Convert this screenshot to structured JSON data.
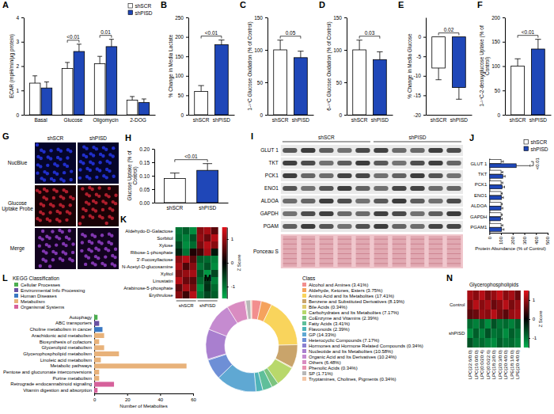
{
  "chart_data": [
    {
      "panel": "A",
      "type": "bar",
      "y_label": "ECAR (mpH/min/µg protein)",
      "categories": [
        "Basal",
        "Glucose",
        "Oligomycin",
        "2-DOG"
      ],
      "series": [
        {
          "name": "shSCR",
          "color": "#ffffff",
          "values": [
            1.3,
            1.9,
            2.1,
            0.6
          ],
          "errors": [
            0.3,
            0.25,
            0.3,
            0.15
          ]
        },
        {
          "name": "shPISD",
          "color": "#1f47b8",
          "values": [
            1.1,
            2.6,
            2.8,
            0.5
          ],
          "errors": [
            0.25,
            0.3,
            0.3,
            0.15
          ]
        }
      ],
      "ylim": [
        0,
        4
      ],
      "yticks": [
        0,
        1,
        2,
        3,
        4
      ],
      "legend": "top-right",
      "annotations": [
        {
          "text": "<0.01",
          "category": "Glucose"
        },
        {
          "text": "0.01",
          "category": "Oligomycin"
        }
      ]
    },
    {
      "panel": "B",
      "type": "bar",
      "y_label": "% Change in Media Lactate",
      "categories": [
        "shSCR",
        "shPISD"
      ],
      "values": [
        60,
        180
      ],
      "errors": [
        15,
        12
      ],
      "colors": [
        "#ffffff",
        "#1f47b8"
      ],
      "ylim": [
        0,
        250
      ],
      "yticks": [
        0,
        50,
        100,
        150,
        200,
        250
      ],
      "annotations": [
        {
          "text": "<0.01"
        }
      ]
    },
    {
      "panel": "C",
      "type": "bar",
      "y_label": "1-¹⁴C Glucose Oxidation (% of Control)",
      "categories": [
        "shSCR",
        "shPISD"
      ],
      "values": [
        100,
        88
      ],
      "errors": [
        15,
        10
      ],
      "colors": [
        "#ffffff",
        "#1f47b8"
      ],
      "ylim": [
        0,
        150
      ],
      "yticks": [
        0,
        50,
        100,
        150
      ],
      "annotations": [
        {
          "text": "0.05"
        }
      ]
    },
    {
      "panel": "D",
      "type": "bar",
      "y_label": "6-¹⁴C Glucose Oxidation (% of Control)",
      "categories": [
        "shSCR",
        "shPISD"
      ],
      "values": [
        100,
        85
      ],
      "errors": [
        15,
        12
      ],
      "colors": [
        "#ffffff",
        "#1f47b8"
      ],
      "ylim": [
        0,
        150
      ],
      "yticks": [
        0,
        50,
        100,
        150
      ],
      "annotations": [
        {
          "text": "0.03"
        }
      ]
    },
    {
      "panel": "E",
      "type": "bar",
      "y_label": "% Change in Media Glucose",
      "categories": [
        "shSCR",
        "shPISD"
      ],
      "values": [
        -8,
        -13
      ],
      "errors": [
        3,
        3
      ],
      "colors": [
        "#ffffff",
        "#1f47b8"
      ],
      "ylim": [
        -20,
        5
      ],
      "yticks": [
        -20,
        -15,
        -10,
        -5,
        0
      ],
      "annotations": [
        {
          "text": "0.02"
        }
      ]
    },
    {
      "panel": "F",
      "type": "bar",
      "y_label": "1-¹⁴C-2-deoxyglucose Uptake (% of Control)",
      "categories": [
        "shSCR",
        "shPISD"
      ],
      "values": [
        100,
        135
      ],
      "errors": [
        15,
        20
      ],
      "colors": [
        "#ffffff",
        "#1f47b8"
      ],
      "ylim": [
        0,
        200
      ],
      "yticks": [
        0,
        50,
        100,
        150,
        200
      ],
      "annotations": [
        {
          "text": "<0.01"
        }
      ]
    },
    {
      "panel": "G",
      "type": "image",
      "columns": [
        "shSCR",
        "shPISD"
      ],
      "rows": [
        "NucBlue",
        "Glucose Uptake Probe",
        "Merge"
      ]
    },
    {
      "panel": "H",
      "type": "bar",
      "y_label": "Glucose Uptake (% of Control)",
      "categories": [
        "shSCR",
        "shPISD"
      ],
      "values": [
        0.09,
        0.12
      ],
      "errors": [
        0.02,
        0.025
      ],
      "colors": [
        "#ffffff",
        "#1f47b8"
      ],
      "ylim": [
        0,
        0.2
      ],
      "yticks": [
        {
          "value": 0,
          "label": "0.00"
        },
        {
          "value": 0.05,
          "label": "0.05"
        },
        {
          "value": 0.1,
          "label": "0.10"
        },
        {
          "value": 0.15,
          "label": "0.15"
        },
        {
          "value": 0.2,
          "label": "0.20"
        }
      ],
      "annotations": [
        {
          "text": "<0.01"
        }
      ]
    },
    {
      "panel": "I",
      "type": "blot",
      "groups": [
        "shSCR",
        "shPISD"
      ],
      "rows": [
        "GLUT 1",
        "TKT",
        "PCK1",
        "ENO1",
        "ALDOA",
        "GAPDH",
        "PGAM"
      ],
      "loading_control": "Ponceau S"
    },
    {
      "panel": "J",
      "type": "bar",
      "orientation": "horizontal",
      "x_label": "Protein Abundance (% of Control)",
      "categories": [
        "GLUT 1",
        "TKT",
        "PCK1",
        "ENO1",
        "ALDOA",
        "GAPDH",
        "PGAM1"
      ],
      "series": [
        {
          "name": "shSCR",
          "color": "#ffffff",
          "values": [
            100,
            100,
            100,
            100,
            100,
            100,
            100
          ],
          "errors": [
            20,
            15,
            15,
            10,
            10,
            10,
            15
          ]
        },
        {
          "name": "shPISD",
          "color": "#1f47b8",
          "values": [
            230,
            115,
            110,
            105,
            100,
            95,
            105
          ],
          "errors": [
            120,
            20,
            20,
            15,
            15,
            15,
            20
          ]
        }
      ],
      "xlim": [
        0,
        500
      ],
      "xticks": [
        0,
        100,
        200,
        300,
        400,
        500
      ],
      "legend": "top-right",
      "annotations": [
        {
          "text": "<0.01",
          "category": "GLUT 1"
        }
      ]
    },
    {
      "panel": "K",
      "type": "heatmap",
      "rows": [
        "Aldehydo-D-Galactose",
        "Sorbitol",
        "Xylose",
        "Ribose-1-phosphate",
        "3'-Fucosyllactose",
        "N-Acetyl-D-glucosamine",
        "Xylitol",
        "Linustatin",
        "Arabinose-5-phosphate",
        "Erythrulose"
      ],
      "groups": [
        "shSCR",
        "shPISD"
      ],
      "cells": [
        [
          [
            -1.0,
            -0.8,
            -1.2
          ],
          [
            0.9,
            1.1,
            0.6
          ]
        ],
        [
          [
            -0.9,
            -1.1,
            -0.7
          ],
          [
            1.0,
            0.7,
            1.2
          ]
        ],
        [
          [
            -0.6,
            -1.2,
            -0.9
          ],
          [
            0.8,
            1.2,
            0.9
          ]
        ],
        [
          [
            -0.3,
            -1.0,
            0.2
          ],
          [
            0.4,
            1.1,
            -0.2
          ]
        ],
        [
          [
            0.9,
            1.2,
            0.6
          ],
          [
            -0.8,
            -0.9,
            -1.1
          ]
        ],
        [
          [
            1.1,
            0.5,
            0.9
          ],
          [
            -1.0,
            -0.7,
            -1.2
          ]
        ],
        [
          [
            0.8,
            1.0,
            1.1
          ],
          [
            -0.7,
            -1.3,
            -0.6
          ]
        ],
        [
          [
            1.2,
            0.7,
            0.6
          ],
          [
            -0.9,
            -0.5,
            -1.1
          ]
        ],
        [
          [
            0.6,
            1.1,
            0.8
          ],
          [
            -1.2,
            -0.4,
            -0.9
          ]
        ],
        [
          [
            0.9,
            0.4,
            1.2
          ],
          [
            -1.0,
            -0.6,
            -0.8
          ]
        ]
      ],
      "colorbar": {
        "title": "Z Score",
        "range": [
          -1.5,
          1.5
        ],
        "ticks": [
          -1,
          0,
          1
        ],
        "colors": [
          "#00b04f",
          "#000000",
          "#e3121b"
        ]
      }
    },
    {
      "panel": "L",
      "type": "bar",
      "orientation": "horizontal",
      "x_label": "Number of Metabolites",
      "legend_title": "KEGG Classification",
      "legend": "top-left",
      "legend_entries": [
        {
          "name": "Cellular Processes",
          "color": "#4caf50"
        },
        {
          "name": "Environmental Info Processing",
          "color": "#6a51a3"
        },
        {
          "name": "Human Diseases",
          "color": "#3a78c3"
        },
        {
          "name": "Metabolism",
          "color": "#e8b27a"
        },
        {
          "name": "Organismal Systems",
          "color": "#d6619b"
        }
      ],
      "categories": [
        "Autophagy",
        "ABC transporters",
        "Choline metabolism in cancer",
        "Arachidonic acid metabolism",
        "Biosynthesis of cofactors",
        "Glycerolipid metabolism",
        "Glycerophospholipid metabolism",
        "Linoleic acid metabolism",
        "Metabolic pathways",
        "Pentose and glucuronate interconversions",
        "Purine metabolism",
        "Retrograde endocannabinoid signaling",
        "Vitamin digestion and absorption"
      ],
      "values": [
        2,
        3,
        5,
        6,
        3,
        6,
        15,
        4,
        56,
        3,
        3,
        12,
        2
      ],
      "colors": [
        "#4caf50",
        "#6a51a3",
        "#3a78c3",
        "#e8b27a",
        "#e8b27a",
        "#e8b27a",
        "#e8b27a",
        "#e8b27a",
        "#e8b27a",
        "#e8b27a",
        "#e8b27a",
        "#d6619b",
        "#d6619b"
      ],
      "xlim": [
        0,
        60
      ],
      "xticks": [
        0,
        20,
        40,
        60
      ]
    },
    {
      "panel": "M",
      "type": "pie",
      "legend_title": "Class",
      "legend": "right",
      "categories": [
        "Alcohol and Amines (3.41%)",
        "Aldehyde, Ketones, Esters (3.75%)",
        "Amino Acid and Its Metabolites (17.41%)",
        "Benzene and Substituted Derivatives (8.19%)",
        "Bile Acids (0.34%)",
        "Carbohydrates and Its Metabolites (7.17%)",
        "CoEnzyme and Vitamins (2.39%)",
        "Fatty Acids (3.41%)",
        "Flavonoids (2.39%)",
        "GP (14.33%)",
        "Heterocyclic Compounds (7.17%)",
        "Hormones and Hormone Related Compounds (0.34%)",
        "Nucleotide and Its Metabolites (10.58%)",
        "Organic Acid and Its Derivatives (10.24%)",
        "Others (6.48%)",
        "Phenolic Acids (0.34%)",
        "SP (1.71%)",
        "Tryptamines, Cholines, Pigments (0.34%)"
      ],
      "values": [
        3.41,
        3.75,
        17.41,
        8.19,
        0.34,
        7.17,
        2.39,
        3.41,
        2.39,
        14.33,
        7.17,
        0.34,
        10.58,
        10.24,
        6.48,
        0.34,
        1.71,
        0.34
      ],
      "colors": [
        "#f28e8e",
        "#f5a25d",
        "#f9d45c",
        "#c9a46b",
        "#e0c96e",
        "#b8d86b",
        "#7cc47f",
        "#5fbf9a",
        "#4fb3b8",
        "#5fa8d3",
        "#6e8fd6",
        "#8c7fd1",
        "#a97fcf",
        "#c58bd0",
        "#d98cc1",
        "#e892b0",
        "#b7b7b7",
        "#f3c6a5"
      ]
    },
    {
      "panel": "N",
      "type": "heatmap",
      "title": "Glycerophospholipids",
      "columns": [
        "LPC(22:6/0:0)",
        "LPC(16:0/0:0)",
        "LPC(0:0/20:4)",
        "LPC(0:0/22:6)",
        "LPC(18:2/0:0)",
        "LPC(20:3/0:0)",
        "LPC(20:4/0:0)",
        "LPE(18:1/0:0)",
        "LPE(20:4/0:0)"
      ],
      "groups": [
        "Control",
        "shPISD"
      ],
      "cells": [
        [
          [
            1.1,
            0.9,
            1.2,
            0.8,
            1.0,
            1.3,
            0.9,
            1.1,
            0.7
          ],
          [
            0.8,
            1.2,
            0.9,
            1.1,
            0.7,
            0.9,
            1.2,
            0.8,
            1.0
          ],
          [
            0.6,
            0.7,
            1.0,
            0.9,
            1.2,
            0.8,
            0.6,
            1.0,
            1.1
          ]
        ],
        [
          [
            -0.9,
            -1.1,
            -0.8,
            -1.2,
            -0.7,
            -1.0,
            -0.9,
            -1.1,
            -0.8
          ],
          [
            -1.2,
            -0.8,
            -1.1,
            -0.7,
            -1.0,
            -0.9,
            -1.2,
            -0.8,
            -1.0
          ],
          [
            -0.7,
            -1.0,
            -0.9,
            -1.1,
            -1.2,
            -0.8,
            -1.0,
            -0.9,
            -1.1
          ]
        ]
      ],
      "colorbar": {
        "title": "Z Score",
        "range": [
          -1.5,
          1.5
        ],
        "ticks": [
          -1,
          0,
          1
        ],
        "colors": [
          "#00b04f",
          "#000000",
          "#e3121b"
        ]
      }
    }
  ]
}
